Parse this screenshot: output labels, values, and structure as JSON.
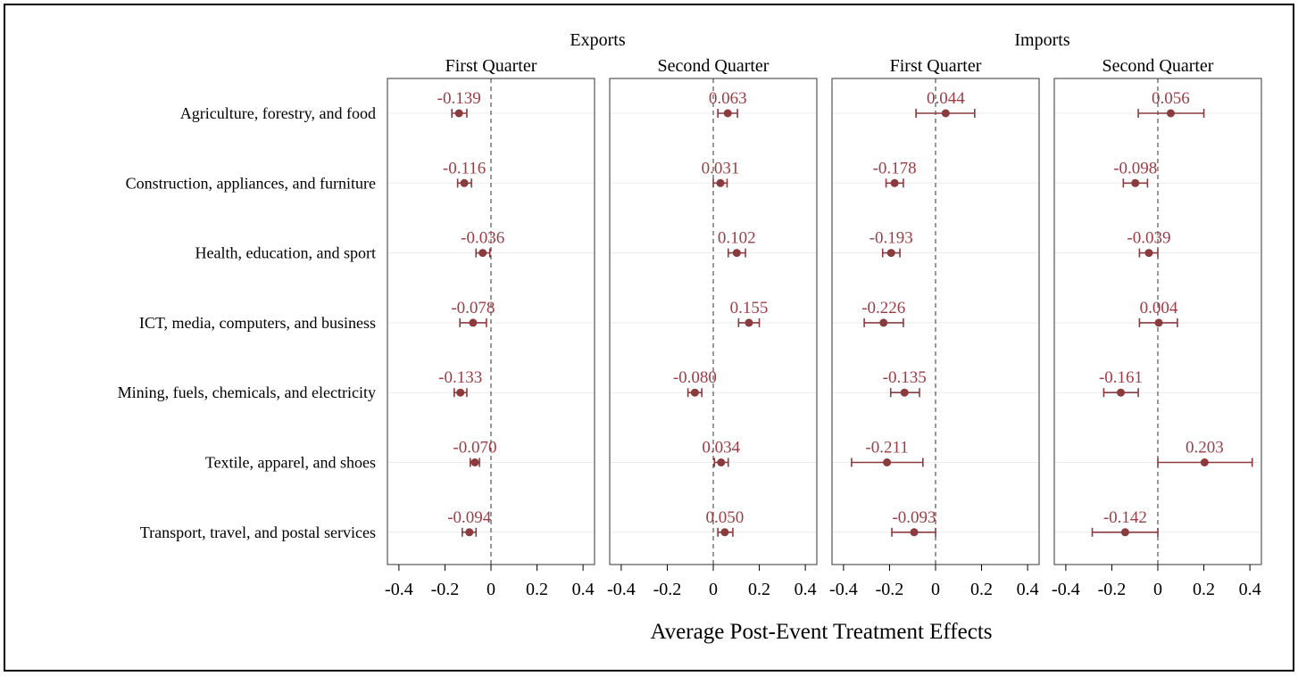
{
  "chart_data": {
    "type": "scatter",
    "subtype": "coefficient plot with confidence intervals",
    "xlabel": "Average Post-Event Treatment Effects",
    "xlim": [
      -0.45,
      0.45
    ],
    "xticks": [
      -0.4,
      -0.2,
      0,
      0.2,
      0.4
    ],
    "xtick_labels": [
      "-0.4",
      "-0.2",
      "0",
      "0.2",
      "0.4"
    ],
    "reference_line": 0,
    "groups": [
      {
        "name": "Exports",
        "panels": [
          "First Quarter",
          "Second Quarter"
        ]
      },
      {
        "name": "Imports",
        "panels": [
          "First Quarter",
          "Second Quarter"
        ]
      }
    ],
    "categories": [
      "Agriculture, forestry, and food",
      "Construction, appliances, and furniture",
      "Health, education, and sport",
      "ICT, media, computers, and business",
      "Mining, fuels, chemicals, and electricity",
      "Textile, apparel, and shoes",
      "Transport, travel, and postal services"
    ],
    "panels": [
      {
        "group": "Exports",
        "title": "First Quarter",
        "estimates": [
          -0.139,
          -0.116,
          -0.036,
          -0.078,
          -0.133,
          -0.07,
          -0.094
        ],
        "labels": [
          "-0.139",
          "-0.116",
          "-0.036",
          "-0.078",
          "-0.133",
          "-0.070",
          "-0.094"
        ],
        "ci_low": [
          -0.17,
          -0.145,
          -0.065,
          -0.135,
          -0.16,
          -0.09,
          -0.125
        ],
        "ci_high": [
          -0.105,
          -0.085,
          -0.005,
          -0.02,
          -0.105,
          -0.05,
          -0.065
        ]
      },
      {
        "group": "Exports",
        "title": "Second Quarter",
        "estimates": [
          0.063,
          0.031,
          0.102,
          0.155,
          -0.08,
          0.034,
          0.05
        ],
        "labels": [
          "0.063",
          "0.031",
          "0.102",
          "0.155",
          "-0.080",
          "0.034",
          "0.050"
        ],
        "ci_low": [
          0.02,
          0.0,
          0.065,
          0.11,
          -0.11,
          0.005,
          0.02
        ],
        "ci_high": [
          0.105,
          0.06,
          0.14,
          0.2,
          -0.05,
          0.065,
          0.085
        ]
      },
      {
        "group": "Imports",
        "title": "First Quarter",
        "estimates": [
          0.044,
          -0.178,
          -0.193,
          -0.226,
          -0.135,
          -0.211,
          -0.093
        ],
        "labels": [
          "0.044",
          "-0.178",
          "-0.193",
          "-0.226",
          "-0.135",
          "-0.211",
          "-0.093"
        ],
        "ci_low": [
          -0.085,
          -0.215,
          -0.23,
          -0.31,
          -0.195,
          -0.365,
          -0.19
        ],
        "ci_high": [
          0.17,
          -0.14,
          -0.155,
          -0.14,
          -0.07,
          -0.055,
          0.0
        ]
      },
      {
        "group": "Imports",
        "title": "Second Quarter",
        "estimates": [
          0.056,
          -0.098,
          -0.039,
          0.004,
          -0.161,
          0.203,
          -0.142
        ],
        "labels": [
          "0.056",
          "-0.098",
          "-0.039",
          "0.004",
          "-0.161",
          "0.203",
          "-0.142"
        ],
        "ci_low": [
          -0.085,
          -0.15,
          -0.08,
          -0.08,
          -0.235,
          0.0,
          -0.285
        ],
        "ci_high": [
          0.2,
          -0.045,
          0.0,
          0.085,
          -0.085,
          0.41,
          0.0
        ]
      }
    ]
  },
  "colors": {
    "marker": "#8b3a3e",
    "label": "#9c3d45",
    "frame": "#555555",
    "gridline": "#ececec",
    "refline": "#444444"
  }
}
